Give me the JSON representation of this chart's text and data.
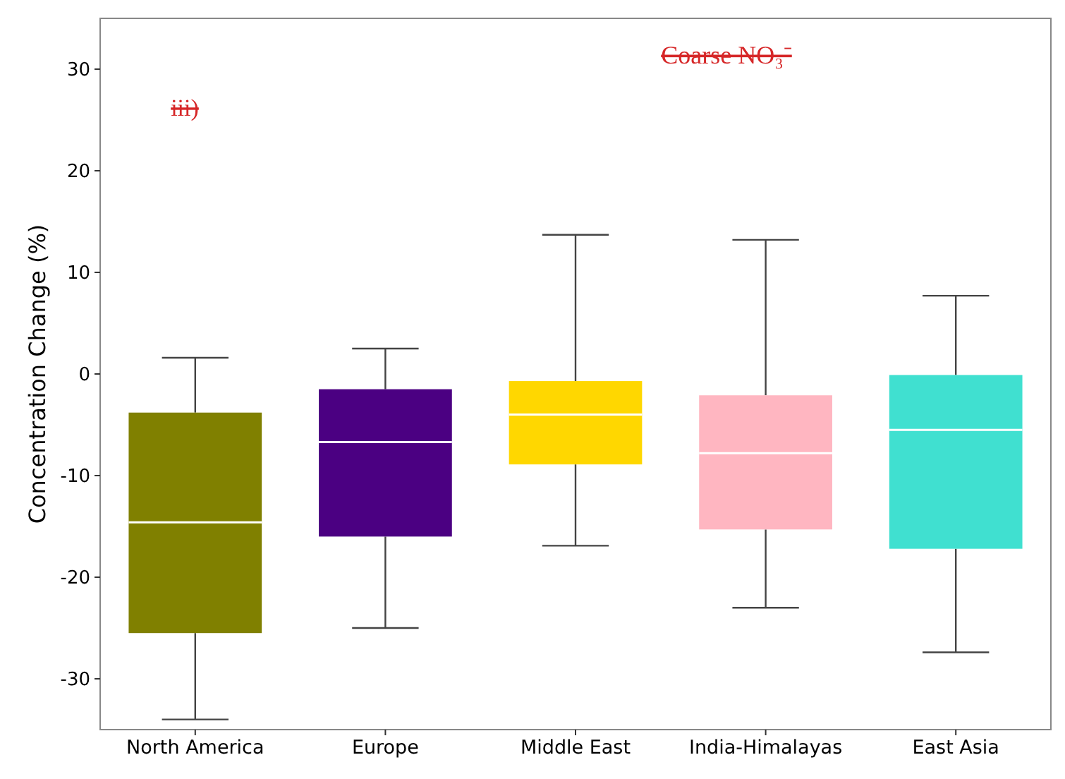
{
  "chart_data": {
    "type": "box",
    "title": "Coarse NO₃⁻",
    "ylabel": "Concentration Change (%)",
    "annotations": [
      "iii)"
    ],
    "categories": [
      "North America",
      "Europe",
      "Middle East",
      "India-Himalayas",
      "East Asia"
    ],
    "colors": [
      "#808000",
      "#4b0082",
      "#ffd700",
      "#ffb6c1",
      "#40e0d0"
    ],
    "boxes": [
      {
        "low": -34,
        "q1": -25.5,
        "median": -14.6,
        "q3": -3.8,
        "high": 1.6
      },
      {
        "low": -25,
        "q1": -16,
        "median": -6.7,
        "q3": -1.5,
        "high": 2.5
      },
      {
        "low": -16.9,
        "q1": -8.9,
        "median": -4,
        "q3": -0.7,
        "high": 13.7
      },
      {
        "low": -23,
        "q1": -15.3,
        "median": -7.8,
        "q3": -2.1,
        "high": 13.2
      },
      {
        "low": -27.4,
        "q1": -17.2,
        "median": -5.5,
        "q3": -0.1,
        "high": 7.7
      }
    ],
    "ylim": [
      -35,
      35
    ],
    "yticks": [
      -30,
      -20,
      -10,
      0,
      10,
      20,
      30
    ],
    "grid": false
  }
}
